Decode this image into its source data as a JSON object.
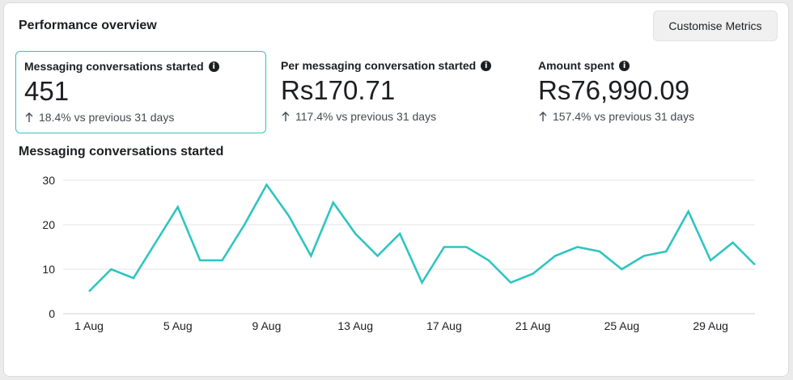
{
  "header": {
    "title": "Performance overview",
    "customise_label": "Customise Metrics"
  },
  "metrics": [
    {
      "label": "Messaging conversations started",
      "value": "451",
      "change": "18.4% vs previous 31 days",
      "selected": true
    },
    {
      "label": "Per messaging conversation started",
      "value": "Rs170.71",
      "change": "117.4% vs previous 31 days",
      "selected": false
    },
    {
      "label": "Amount spent",
      "value": "Rs76,990.09",
      "change": "157.4% vs previous 31 days",
      "selected": false
    }
  ],
  "icons": {
    "info": "info-icon",
    "change": "arrow-up-icon"
  },
  "colors": {
    "accent": "#2ec5c0",
    "grid": "#e4e4e4",
    "text": "#1c1e21"
  },
  "chart_data": {
    "type": "line",
    "title": "Messaging conversations started",
    "x": [
      "1 Aug",
      "2 Aug",
      "3 Aug",
      "4 Aug",
      "5 Aug",
      "6 Aug",
      "7 Aug",
      "8 Aug",
      "9 Aug",
      "10 Aug",
      "11 Aug",
      "12 Aug",
      "13 Aug",
      "14 Aug",
      "15 Aug",
      "16 Aug",
      "17 Aug",
      "18 Aug",
      "19 Aug",
      "20 Aug",
      "21 Aug",
      "22 Aug",
      "23 Aug",
      "24 Aug",
      "25 Aug",
      "26 Aug",
      "27 Aug",
      "28 Aug",
      "29 Aug",
      "30 Aug",
      "31 Aug"
    ],
    "x_tick_labels": [
      "1 Aug",
      "5 Aug",
      "9 Aug",
      "13 Aug",
      "17 Aug",
      "21 Aug",
      "25 Aug",
      "29 Aug"
    ],
    "values": [
      5,
      10,
      8,
      16,
      24,
      12,
      12,
      20,
      29,
      22,
      13,
      25,
      18,
      13,
      18,
      7,
      15,
      15,
      12,
      7,
      9,
      13,
      15,
      14,
      10,
      13,
      14,
      23,
      12,
      16,
      11
    ],
    "y_ticks": [
      0,
      10,
      20,
      30
    ],
    "ylim": [
      0,
      30
    ],
    "grid": true
  }
}
